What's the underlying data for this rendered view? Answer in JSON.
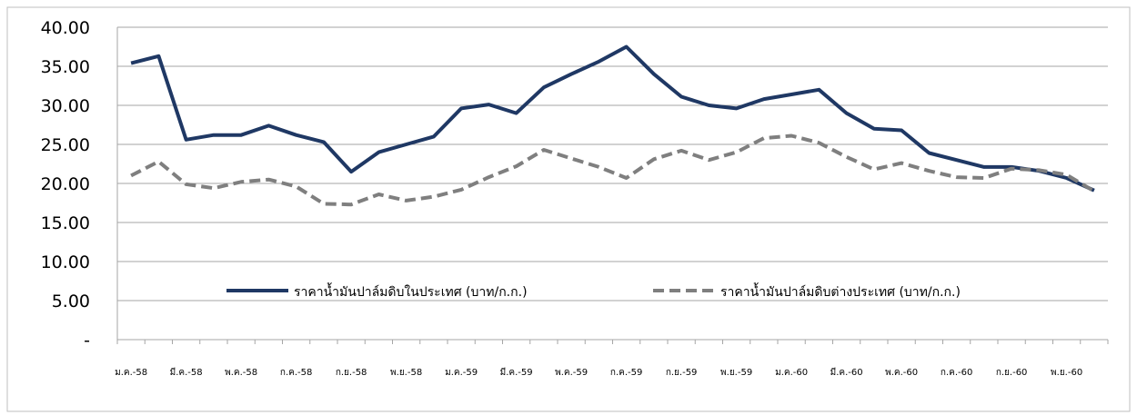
{
  "chart_data": {
    "type": "line",
    "title": "",
    "xlabel": "",
    "ylabel": "",
    "ylim": [
      0,
      40
    ],
    "y_ticks": [
      "-",
      "5.00",
      "10.00",
      "15.00",
      "20.00",
      "25.00",
      "30.00",
      "35.00",
      "40.00"
    ],
    "x_tick_labels": [
      "ม.ค.-58",
      "มี.ค.-58",
      "พ.ค.-58",
      "ก.ค.-58",
      "ก.ย.-58",
      "พ.ย.-58",
      "ม.ค.-59",
      "มี.ค.-59",
      "พ.ค.-59",
      "ก.ค.-59",
      "ก.ย.-59",
      "พ.ย.-59",
      "ม.ค.-60",
      "มี.ค.-60",
      "พ.ค.-60",
      "ก.ค.-60",
      "ก.ย.-60",
      "พ.ย.-60"
    ],
    "grid": "horizontal",
    "legend": "inside-center",
    "series": [
      {
        "name": "ราคาน้ำมันปาล์มดิบในประเทศ (บาท/ก.ก.)",
        "color": "#1f3864",
        "dash": "solid",
        "values": [
          35.4,
          36.3,
          25.6,
          26.2,
          26.2,
          27.4,
          26.2,
          25.3,
          21.5,
          24.0,
          25.0,
          26.0,
          29.6,
          30.1,
          29.0,
          32.3,
          34.0,
          35.6,
          37.5,
          34.0,
          31.1,
          30.0,
          29.6,
          30.8,
          31.4,
          32.0,
          29.0,
          27.0,
          26.8,
          23.9,
          23.0,
          22.1,
          22.1,
          21.6,
          20.7,
          19.1
        ]
      },
      {
        "name": "ราคาน้ำมันปาล์มดิบต่างประเทศ (บาท/ก.ก.)",
        "color": "#7f7f7f",
        "dash": "dashed",
        "values": [
          21.0,
          22.8,
          19.9,
          19.4,
          20.2,
          20.5,
          19.6,
          17.4,
          17.3,
          18.6,
          17.8,
          18.3,
          19.2,
          20.8,
          22.2,
          24.3,
          23.2,
          22.1,
          20.7,
          23.1,
          24.2,
          23.0,
          24.0,
          25.8,
          26.1,
          25.2,
          23.4,
          21.8,
          22.6,
          21.6,
          20.8,
          20.7,
          21.9,
          21.7,
          21.1,
          19.0
        ]
      }
    ]
  }
}
